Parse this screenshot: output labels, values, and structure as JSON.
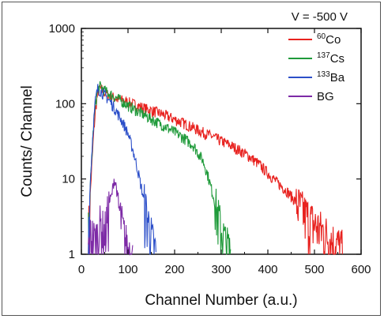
{
  "chart_data": {
    "type": "line",
    "title": "",
    "annotation": "V = -500 V",
    "xlabel": "Channel Number (a.u.)",
    "ylabel": "Counts/ Channel",
    "xlim": [
      0,
      600
    ],
    "ylim": [
      1,
      1000
    ],
    "yscale": "log",
    "grid": false,
    "legend_position": "top-right",
    "x_ticks": [
      0,
      100,
      200,
      300,
      400,
      500,
      600
    ],
    "y_ticks": [
      1,
      10,
      100,
      1000
    ],
    "x_tick_labels": [
      "0",
      "100",
      "200",
      "300",
      "400",
      "500",
      "600"
    ],
    "y_tick_labels": [
      "1",
      "10",
      "100",
      "1000"
    ],
    "legend": [
      {
        "sup": "60",
        "base": "Co",
        "color": "#e8221f"
      },
      {
        "sup": "137",
        "base": "Cs",
        "color": "#1f9a3a"
      },
      {
        "sup": "133",
        "base": "Ba",
        "color": "#2c4fc9"
      },
      {
        "sup": "",
        "base": "BG",
        "color": "#7d2aa6"
      }
    ],
    "series": [
      {
        "name": "60Co",
        "color": "#e8221f",
        "x": [
          15,
          20,
          25,
          30,
          35,
          40,
          45,
          50,
          60,
          70,
          80,
          90,
          100,
          120,
          140,
          160,
          180,
          200,
          220,
          240,
          260,
          280,
          300,
          320,
          340,
          360,
          380,
          400,
          420,
          440,
          460,
          480,
          500,
          520,
          540,
          560
        ],
        "y": [
          2,
          8,
          30,
          80,
          140,
          160,
          150,
          140,
          130,
          120,
          115,
          110,
          105,
          95,
          85,
          78,
          70,
          62,
          55,
          48,
          42,
          37,
          32,
          28,
          24,
          20,
          16,
          12,
          9,
          7,
          5,
          3.5,
          2.5,
          2,
          1.5,
          1.2
        ]
      },
      {
        "name": "137Cs",
        "color": "#1f9a3a",
        "x": [
          15,
          20,
          25,
          30,
          35,
          40,
          45,
          50,
          60,
          70,
          80,
          90,
          100,
          120,
          140,
          160,
          180,
          200,
          220,
          240,
          260,
          270,
          280,
          290,
          300,
          310,
          320
        ],
        "y": [
          2,
          10,
          40,
          100,
          150,
          170,
          160,
          150,
          135,
          125,
          115,
          105,
          95,
          80,
          68,
          58,
          50,
          42,
          35,
          28,
          18,
          12,
          7,
          4,
          2.2,
          1.4,
          1.1
        ]
      },
      {
        "name": "133Ba",
        "color": "#2c4fc9",
        "x": [
          15,
          20,
          25,
          30,
          35,
          40,
          45,
          50,
          60,
          70,
          80,
          90,
          100,
          110,
          120,
          130,
          140,
          150,
          155,
          160
        ],
        "y": [
          2,
          12,
          45,
          110,
          160,
          150,
          140,
          130,
          110,
          90,
          70,
          55,
          40,
          25,
          14,
          7,
          3.5,
          1.8,
          1.3,
          1.05
        ]
      },
      {
        "name": "BG",
        "color": "#7d2aa6",
        "x": [
          15,
          20,
          30,
          40,
          50,
          55,
          60,
          65,
          70,
          75,
          80,
          85,
          90,
          95,
          100,
          110
        ],
        "y": [
          1.1,
          2,
          1.5,
          2.5,
          2,
          3,
          5,
          6,
          10,
          8,
          4,
          3,
          2,
          1.5,
          1.2,
          1.0
        ]
      }
    ]
  }
}
